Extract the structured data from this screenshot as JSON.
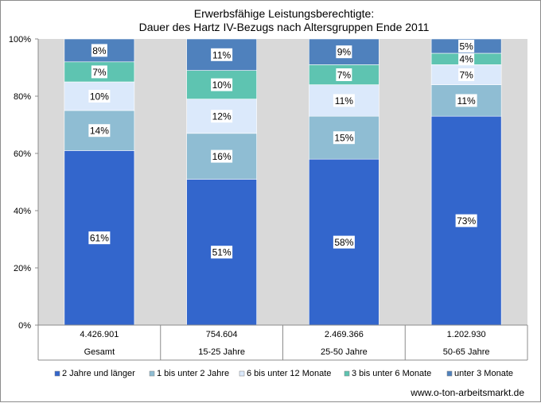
{
  "chart_data": {
    "type": "bar",
    "stacked": "percent",
    "title": [
      "Erwerbsfähige Leistungsberechtigte:",
      "Dauer des Hartz IV-Bezugs nach Altersgruppen Ende 2011"
    ],
    "categories": [
      "Gesamt",
      "15-25 Jahre",
      "25-50 Jahre",
      "50-65 Jahre"
    ],
    "totals": [
      "4.426.901",
      "754.604",
      "2.469.366",
      "1.202.930"
    ],
    "yticks": [
      "0%",
      "20%",
      "40%",
      "60%",
      "80%",
      "100%"
    ],
    "ylim": [
      0,
      100
    ],
    "series": [
      {
        "name": "2 Jahre und länger",
        "color": "#3366cc",
        "values": [
          61,
          51,
          58,
          73
        ]
      },
      {
        "name": "1 bis unter 2 Jahre",
        "color": "#8fbdd3",
        "values": [
          14,
          16,
          15,
          11
        ]
      },
      {
        "name": "6 bis unter 12 Monate",
        "color": "#dbe9fb",
        "values": [
          10,
          12,
          11,
          7
        ]
      },
      {
        "name": "3 bis unter 6 Monate",
        "color": "#5ec4b1",
        "values": [
          7,
          10,
          7,
          4
        ]
      },
      {
        "name": "unter 3 Monate",
        "color": "#4f81bd",
        "values": [
          8,
          11,
          9,
          5
        ]
      }
    ],
    "plot_background": "#d9d9d9",
    "legend_position": "bottom"
  },
  "source": "www.o-ton-arbeitsmarkt.de"
}
